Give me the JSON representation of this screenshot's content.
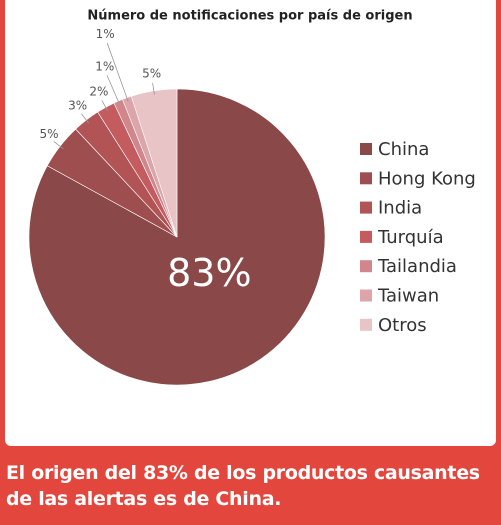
{
  "chart_data": {
    "type": "pie",
    "title": "Número de notificaciones por país de origen",
    "categories": [
      "China",
      "Hong Kong",
      "India",
      "Turquía",
      "Tailandia",
      "Taiwan",
      "Otros"
    ],
    "values": [
      83,
      5,
      3,
      2,
      1,
      1,
      5
    ],
    "value_labels": [
      "83%",
      "5%",
      "3%",
      "2%",
      "1%",
      "1%",
      "5%"
    ],
    "colors": [
      "#8b4848",
      "#9e4e4f",
      "#b25355",
      "#c35b5f",
      "#d0868b",
      "#dca5a9",
      "#e9c4c6"
    ],
    "legend": "right",
    "caption": "El origen del 83% de los productos causantes de las alertas es de China."
  }
}
